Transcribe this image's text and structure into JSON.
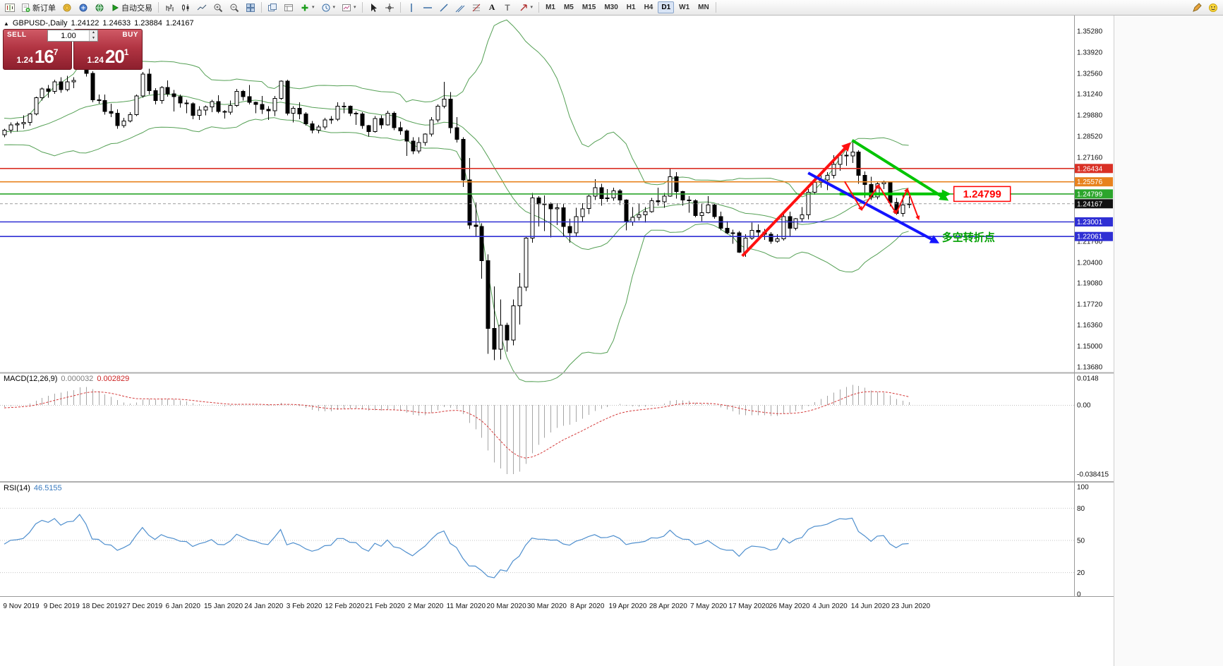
{
  "icons": {
    "collapse_arrow": "▲",
    "caret": "▾",
    "stepper_up": "▲",
    "stepper_down": "▼"
  },
  "toolbar": {
    "new_order_label": "新订单",
    "autotrading_label": "自动交易",
    "text_tool_glyph": "A",
    "label_tool_glyph": "T",
    "timeframes": [
      "M1",
      "M5",
      "M15",
      "M30",
      "H1",
      "H4",
      "D1",
      "W1",
      "MN"
    ],
    "active_timeframe": "D1"
  },
  "chart_header": {
    "symbol_period": "GBPUSD-,Daily",
    "open": "1.24122",
    "high": "1.24633",
    "low": "1.23884",
    "close": "1.24167"
  },
  "one_click": {
    "sell_label": "SELL",
    "buy_label": "BUY",
    "volume": "1.00",
    "sell_price_base": "1.24",
    "sell_price_big": "16",
    "sell_price_sup": "7",
    "buy_price_base": "1.24",
    "buy_price_big": "20",
    "buy_price_sup": "1"
  },
  "macd_panel": {
    "title": "MACD(12,26,9)",
    "value_main": "0.000032",
    "value_signal": "0.002829",
    "scale_max": "0.0148",
    "scale_zero": "0.00",
    "scale_min": "-0.038415"
  },
  "rsi_panel": {
    "title": "RSI(14)",
    "value": "46.5155",
    "scale_labels": [
      {
        "v": 100,
        "t": "100"
      },
      {
        "v": 80,
        "t": "80"
      },
      {
        "v": 50,
        "t": "50"
      },
      {
        "v": 20,
        "t": "20"
      },
      {
        "v": 0,
        "t": "0"
      }
    ],
    "levels": [
      80,
      50,
      20
    ]
  },
  "price_scale": {
    "gridline_labels": [
      "1.35280",
      "1.33920",
      "1.32560",
      "1.31240",
      "1.29880",
      "1.28520",
      "1.27160",
      "1.21760",
      "1.20400",
      "1.19080",
      "1.17720",
      "1.16360",
      "1.15000",
      "1.13680"
    ]
  },
  "chart_data": {
    "type": "candlestick",
    "symbol": "GBPUSD-",
    "period": "Daily",
    "price_axis": {
      "anchor_price": 1.3528,
      "top_price": 1.36281,
      "bottom_price": 1.13307
    },
    "date_labels": [
      "9 Nov 2019",
      "9 Dec 2019",
      "18 Dec 2019",
      "27 Dec 2019",
      "6 Jan 2020",
      "15 Jan 2020",
      "24 Jan 2020",
      "3 Feb 2020",
      "12 Feb 2020",
      "21 Feb 2020",
      "2 Mar 2020",
      "11 Mar 2020",
      "20 Mar 2020",
      "30 Mar 2020",
      "8 Apr 2020",
      "19 Apr 2020",
      "28 Apr 2020",
      "7 May 2020",
      "17 May 2020",
      "26 May 2020",
      "4 Jun 2020",
      "14 Jun 2020",
      "23 Jun 2020"
    ],
    "h_lines": [
      {
        "price": 1.26434,
        "label": "1.26434",
        "color": "#d93025",
        "style": "solid"
      },
      {
        "price": 1.25576,
        "label": "1.25576",
        "color": "#e8821e",
        "style": "solid"
      },
      {
        "price": 1.24799,
        "label": "1.24799",
        "color": "#2ca52c",
        "style": "solid"
      },
      {
        "price": 1.24167,
        "label": "1.24167",
        "color": "#111111",
        "style": "dash",
        "role": "current"
      },
      {
        "price": 1.23001,
        "label": "1.23001",
        "color": "#2f2fd4",
        "style": "solid"
      },
      {
        "price": 1.22061,
        "label": "1.22061",
        "color": "#2f2fd4",
        "style": "solid"
      }
    ],
    "bollinger": {
      "period": 20,
      "deviation": 2,
      "color": "#55a055"
    },
    "macd": {
      "fast": 12,
      "slow": 26,
      "signal": 9,
      "histogram_color": "#a6a6a6",
      "signal_color": "#d43a3a"
    },
    "rsi": {
      "period": 14,
      "color": "#4f8fce"
    },
    "warmup_candles": [
      [
        1.296,
        1.3,
        1.293,
        1.2985
      ],
      [
        1.2985,
        1.301,
        1.286,
        1.2875
      ],
      [
        1.2875,
        1.29,
        1.2835,
        1.287
      ],
      [
        1.287,
        1.295,
        1.2845,
        1.293
      ],
      [
        1.293,
        1.296,
        1.2875,
        1.2905
      ],
      [
        1.2905,
        1.2925,
        1.285,
        1.286
      ],
      [
        1.286,
        1.2945,
        1.2855,
        1.294
      ],
      [
        1.294,
        1.2975,
        1.29,
        1.294
      ],
      [
        1.294,
        1.2955,
        1.2865,
        1.2885
      ],
      [
        1.2885,
        1.293,
        1.287,
        1.292
      ],
      [
        1.292,
        1.293,
        1.2845,
        1.2855
      ],
      [
        1.2855,
        1.288,
        1.2805,
        1.284
      ],
      [
        1.284,
        1.2865,
        1.281,
        1.285
      ],
      [
        1.285,
        1.2895,
        1.2825,
        1.2885
      ],
      [
        1.2885,
        1.2905,
        1.285,
        1.287
      ],
      [
        1.287,
        1.288,
        1.2765,
        1.279
      ],
      [
        1.279,
        1.2815,
        1.276,
        1.28
      ],
      [
        1.28,
        1.287,
        1.278,
        1.2855
      ],
      [
        1.2855,
        1.2925,
        1.285,
        1.291
      ],
      [
        1.291,
        1.2985,
        1.289,
        1.2965
      ],
      [
        1.2965,
        1.2995,
        1.292,
        1.293
      ],
      [
        1.293,
        1.2955,
        1.2885,
        1.292
      ],
      [
        1.292,
        1.294,
        1.2855,
        1.287
      ],
      [
        1.287,
        1.2895,
        1.284,
        1.2885
      ],
      [
        1.2885,
        1.2925,
        1.286,
        1.2905
      ],
      [
        1.2905,
        1.2935,
        1.2855,
        1.2865
      ]
    ],
    "candles": [
      [
        1.286,
        1.29,
        1.2845,
        1.289
      ],
      [
        1.289,
        1.294,
        1.287,
        1.2925
      ],
      [
        1.2925,
        1.2945,
        1.288,
        1.293
      ],
      [
        1.293,
        1.2985,
        1.29,
        1.294
      ],
      [
        1.294,
        1.3,
        1.292,
        1.2995
      ],
      [
        1.2995,
        1.3105,
        1.2985,
        1.31
      ],
      [
        1.31,
        1.3165,
        1.308,
        1.3155
      ],
      [
        1.3155,
        1.318,
        1.31,
        1.314
      ],
      [
        1.314,
        1.3215,
        1.3125,
        1.32
      ],
      [
        1.32,
        1.323,
        1.313,
        1.315
      ],
      [
        1.315,
        1.324,
        1.314,
        1.32
      ],
      [
        1.32,
        1.323,
        1.316,
        1.321
      ],
      [
        1.338,
        1.3455,
        1.331,
        1.3335
      ],
      [
        1.3335,
        1.342,
        1.3235,
        1.3255
      ],
      [
        1.3255,
        1.327,
        1.307,
        1.3085
      ],
      [
        1.3085,
        1.312,
        1.306,
        1.308
      ],
      [
        1.308,
        1.312,
        1.299,
        1.301
      ],
      [
        1.301,
        1.306,
        1.2975,
        1.3
      ],
      [
        1.3,
        1.3025,
        1.29,
        1.292
      ],
      [
        1.292,
        1.297,
        1.2905,
        1.295
      ],
      [
        1.295,
        1.3005,
        1.294,
        1.299
      ],
      [
        1.299,
        1.312,
        1.298,
        1.311
      ],
      [
        1.311,
        1.3265,
        1.31,
        1.325
      ],
      [
        1.325,
        1.3285,
        1.312,
        1.3145
      ],
      [
        1.3145,
        1.316,
        1.3055,
        1.308
      ],
      [
        1.308,
        1.3175,
        1.306,
        1.3165
      ],
      [
        1.3165,
        1.321,
        1.3105,
        1.3125
      ],
      [
        1.3125,
        1.315,
        1.301,
        1.3105
      ],
      [
        1.3105,
        1.312,
        1.3035,
        1.3065
      ],
      [
        1.3065,
        1.3085,
        1.3,
        1.306
      ],
      [
        1.306,
        1.307,
        1.296,
        1.2985
      ],
      [
        1.2985,
        1.3045,
        1.2955,
        1.302
      ],
      [
        1.302,
        1.305,
        1.2985,
        1.304
      ],
      [
        1.304,
        1.3085,
        1.3005,
        1.3075
      ],
      [
        1.3075,
        1.3115,
        1.3,
        1.301
      ],
      [
        1.301,
        1.302,
        1.2965,
        1.3005
      ],
      [
        1.3005,
        1.308,
        1.299,
        1.305
      ],
      [
        1.305,
        1.3155,
        1.304,
        1.314
      ],
      [
        1.314,
        1.315,
        1.308,
        1.3105
      ],
      [
        1.3105,
        1.318,
        1.3055,
        1.307
      ],
      [
        1.307,
        1.3075,
        1.3,
        1.3055
      ],
      [
        1.3055,
        1.311,
        1.2995,
        1.3025
      ],
      [
        1.3025,
        1.3045,
        1.2955,
        1.3015
      ],
      [
        1.3015,
        1.311,
        1.298,
        1.3095
      ],
      [
        1.3095,
        1.321,
        1.3085,
        1.3205
      ],
      [
        1.3205,
        1.3215,
        1.2985,
        1.3
      ],
      [
        1.3,
        1.3045,
        1.294,
        1.303
      ],
      [
        1.303,
        1.307,
        1.296,
        1.2995
      ],
      [
        1.2995,
        1.3005,
        1.292,
        1.293
      ],
      [
        1.293,
        1.295,
        1.287,
        1.289
      ],
      [
        1.289,
        1.2925,
        1.287,
        1.291
      ],
      [
        1.291,
        1.297,
        1.2895,
        1.2955
      ],
      [
        1.2955,
        1.298,
        1.293,
        1.296
      ],
      [
        1.296,
        1.307,
        1.295,
        1.3045
      ],
      [
        1.3045,
        1.307,
        1.3,
        1.3045
      ],
      [
        1.3045,
        1.305,
        1.298,
        1.3
      ],
      [
        1.3,
        1.301,
        1.2925,
        1.2995
      ],
      [
        1.2995,
        1.3005,
        1.29,
        1.292
      ],
      [
        1.292,
        1.2925,
        1.285,
        1.288
      ],
      [
        1.288,
        1.298,
        1.2875,
        1.2965
      ],
      [
        1.2965,
        1.2985,
        1.29,
        1.2925
      ],
      [
        1.2925,
        1.3015,
        1.292,
        1.3
      ],
      [
        1.3,
        1.301,
        1.289,
        1.2905
      ],
      [
        1.2905,
        1.2945,
        1.286,
        1.2885
      ],
      [
        1.2885,
        1.2895,
        1.2725,
        1.282
      ],
      [
        1.282,
        1.2845,
        1.2735,
        1.2755
      ],
      [
        1.2755,
        1.2845,
        1.274,
        1.281
      ],
      [
        1.281,
        1.287,
        1.279,
        1.2865
      ],
      [
        1.2865,
        1.2975,
        1.285,
        1.2955
      ],
      [
        1.2955,
        1.3055,
        1.294,
        1.3045
      ],
      [
        1.3045,
        1.32,
        1.303,
        1.309
      ],
      [
        1.309,
        1.3135,
        1.287,
        1.2905
      ],
      [
        1.2905,
        1.2975,
        1.281,
        1.283
      ],
      [
        1.283,
        1.2845,
        1.2525,
        1.257
      ],
      [
        1.257,
        1.271,
        1.2255,
        1.228
      ],
      [
        1.228,
        1.2425,
        1.2205,
        1.227
      ],
      [
        1.227,
        1.229,
        1.1935,
        1.205
      ],
      [
        1.205,
        1.209,
        1.145,
        1.1615
      ],
      [
        1.1615,
        1.1885,
        1.1409,
        1.148
      ],
      [
        1.148,
        1.18,
        1.1415,
        1.1635
      ],
      [
        1.1635,
        1.165,
        1.1465,
        1.154
      ],
      [
        1.154,
        1.18,
        1.1505,
        1.176
      ],
      [
        1.176,
        1.197,
        1.164,
        1.188
      ],
      [
        1.188,
        1.221,
        1.1855,
        1.2195
      ],
      [
        1.2195,
        1.2485,
        1.2165,
        1.2455
      ],
      [
        1.2455,
        1.2465,
        1.227,
        1.2415
      ],
      [
        1.2415,
        1.247,
        1.224,
        1.2415
      ],
      [
        1.2415,
        1.2425,
        1.22,
        1.2385
      ],
      [
        1.2385,
        1.242,
        1.228,
        1.239
      ],
      [
        1.239,
        1.2415,
        1.2205,
        1.227
      ],
      [
        1.227,
        1.232,
        1.2165,
        1.223
      ],
      [
        1.223,
        1.239,
        1.2205,
        1.2335
      ],
      [
        1.2335,
        1.242,
        1.23,
        1.2385
      ],
      [
        1.2385,
        1.2475,
        1.235,
        1.2465
      ],
      [
        1.2465,
        1.2575,
        1.244,
        1.252
      ],
      [
        1.252,
        1.2545,
        1.2405,
        1.245
      ],
      [
        1.245,
        1.251,
        1.243,
        1.2455
      ],
      [
        1.2455,
        1.252,
        1.2435,
        1.25
      ],
      [
        1.25,
        1.251,
        1.241,
        1.244
      ],
      [
        1.244,
        1.2445,
        1.2245,
        1.23
      ],
      [
        1.23,
        1.2395,
        1.2275,
        1.233
      ],
      [
        1.233,
        1.2415,
        1.231,
        1.2345
      ],
      [
        1.2345,
        1.2395,
        1.2295,
        1.2365
      ],
      [
        1.2365,
        1.2455,
        1.236,
        1.2435
      ],
      [
        1.2435,
        1.252,
        1.2405,
        1.243
      ],
      [
        1.243,
        1.2485,
        1.239,
        1.2465
      ],
      [
        1.2465,
        1.2645,
        1.246,
        1.259
      ],
      [
        1.259,
        1.262,
        1.245,
        1.2495
      ],
      [
        1.2495,
        1.25,
        1.2405,
        1.244
      ],
      [
        1.244,
        1.2465,
        1.236,
        1.2435
      ],
      [
        1.2435,
        1.2445,
        1.233,
        1.234
      ],
      [
        1.234,
        1.242,
        1.2305,
        1.236
      ],
      [
        1.236,
        1.2465,
        1.2355,
        1.241
      ],
      [
        1.241,
        1.2415,
        1.232,
        1.2335
      ],
      [
        1.2335,
        1.2365,
        1.2245,
        1.226
      ],
      [
        1.226,
        1.2305,
        1.222,
        1.223
      ],
      [
        1.223,
        1.225,
        1.216,
        1.223
      ],
      [
        1.223,
        1.224,
        1.21,
        1.2105
      ],
      [
        1.2105,
        1.222,
        1.2075,
        1.2195
      ],
      [
        1.2195,
        1.2295,
        1.2185,
        1.2245
      ],
      [
        1.2245,
        1.2285,
        1.221,
        1.2235
      ],
      [
        1.2235,
        1.2255,
        1.2185,
        1.222
      ],
      [
        1.222,
        1.2235,
        1.216,
        1.2175
      ],
      [
        1.2175,
        1.222,
        1.2165,
        1.219
      ],
      [
        1.219,
        1.2365,
        1.218,
        1.2335
      ],
      [
        1.2335,
        1.2365,
        1.2205,
        1.226
      ],
      [
        1.226,
        1.2325,
        1.2245,
        1.232
      ],
      [
        1.232,
        1.2395,
        1.23,
        1.2345
      ],
      [
        1.2345,
        1.251,
        1.2315,
        1.249
      ],
      [
        1.249,
        1.2585,
        1.2475,
        1.2555
      ],
      [
        1.2555,
        1.2615,
        1.252,
        1.257
      ],
      [
        1.257,
        1.262,
        1.2505,
        1.26
      ],
      [
        1.26,
        1.273,
        1.258,
        1.267
      ],
      [
        1.267,
        1.274,
        1.263,
        1.273
      ],
      [
        1.273,
        1.2755,
        1.266,
        1.2725
      ],
      [
        1.2725,
        1.2815,
        1.268,
        1.275
      ],
      [
        1.275,
        1.276,
        1.2545,
        1.26
      ],
      [
        1.26,
        1.2625,
        1.2455,
        1.254
      ],
      [
        1.254,
        1.259,
        1.244,
        1.246
      ],
      [
        1.246,
        1.256,
        1.2445,
        1.2545
      ],
      [
        1.2545,
        1.2565,
        1.251,
        1.2555
      ],
      [
        1.2555,
        1.256,
        1.24,
        1.2425
      ],
      [
        1.2425,
        1.2455,
        1.2345,
        1.2355
      ],
      [
        1.2355,
        1.248,
        1.2335,
        1.241
      ],
      [
        1.24122,
        1.24633,
        1.23884,
        1.24167
      ]
    ],
    "drawings": [
      {
        "name": "rally-arrow",
        "type": "arrow",
        "color": "#ff1010",
        "width": 4,
        "from": [
          117.5,
          1.208
        ],
        "to": [
          134.5,
          1.28
        ]
      },
      {
        "name": "resistance-trendline",
        "type": "arrow",
        "color": "#00c400",
        "width": 4,
        "from": [
          135,
          1.2825
        ],
        "to": [
          150,
          1.2445
        ]
      },
      {
        "name": "support-line",
        "type": "arrow",
        "color": "#00c400",
        "width": 4,
        "from": [
          133,
          1.24799
        ],
        "to": [
          150.3,
          1.24799
        ]
      },
      {
        "name": "breakdown-arrow",
        "type": "arrow",
        "color": "#1414ff",
        "width": 4,
        "from": [
          128,
          1.2615
        ],
        "to": [
          148.5,
          1.217
        ]
      },
      {
        "name": "zigzag-swings",
        "type": "zigzag-arrows",
        "color": "#ff1010",
        "width": 2,
        "points": [
          [
            133.8,
            1.256
          ],
          [
            136.5,
            1.2378
          ],
          [
            139.2,
            1.2536
          ],
          [
            142.0,
            1.2355
          ],
          [
            143.8,
            1.2512
          ],
          [
            145.6,
            1.2318
          ]
        ]
      }
    ],
    "callout": {
      "text": "1.24799",
      "bar": 151.2,
      "price": 1.24799,
      "color": "#ff0000"
    },
    "pivot": {
      "text": "多空转折点",
      "bar": 149.3,
      "price": 1.22,
      "color": "#00a000"
    }
  }
}
